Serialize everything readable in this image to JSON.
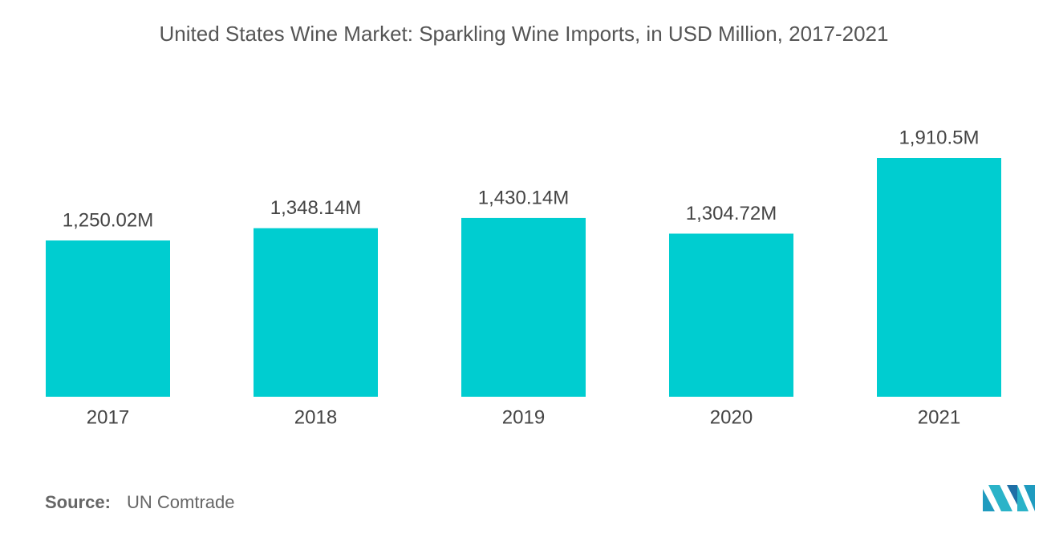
{
  "chart_data": {
    "type": "bar",
    "title": "United States Wine Market: Sparkling Wine Imports, in USD Million, 2017-2021",
    "categories": [
      "2017",
      "2018",
      "2019",
      "2020",
      "2021"
    ],
    "values": [
      1250.02,
      1348.14,
      1430.14,
      1304.72,
      1910.5
    ],
    "value_labels": [
      "1,250.02M",
      "1,348.14M",
      "1,430.14M",
      "1,304.72M",
      "1,910.5M"
    ],
    "color": "#00cdd0",
    "source_label": "Source:",
    "source": "UN Comtrade"
  }
}
